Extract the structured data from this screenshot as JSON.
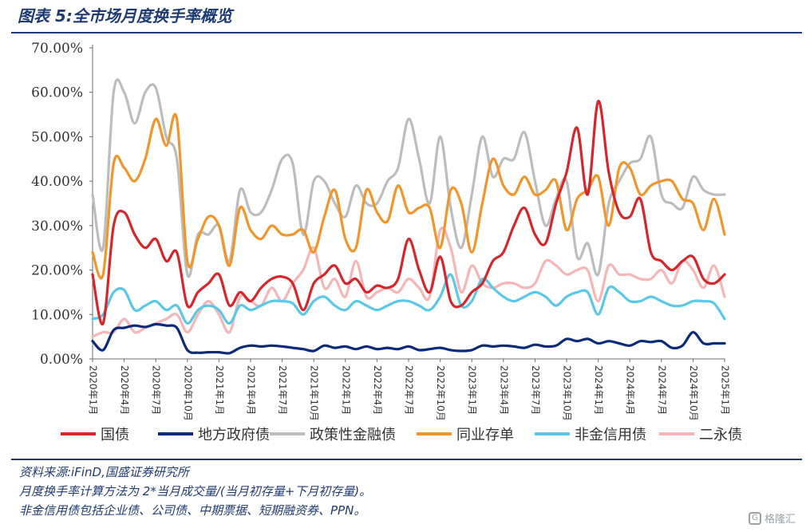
{
  "title": "图表 5:全市场月度换手率概览",
  "notes": {
    "source": "资料来源:iFinD,国盛证券研究所",
    "method": "月度换手率计算方法为 2*当月成交量/(当月初存量+下月初存量)。",
    "scope": "非金信用债包括企业债、公司债、中期票据、短期融资券、PPN。"
  },
  "watermark": "格隆汇",
  "chart_data": {
    "type": "line",
    "title": "",
    "xlabel": "",
    "ylabel": "",
    "ylim": [
      0,
      0.7
    ],
    "yticks": [
      "0.00%",
      "10.00%",
      "20.00%",
      "30.00%",
      "40.00%",
      "50.00%",
      "60.00%",
      "70.00%"
    ],
    "x": [
      "2020-01",
      "2020-02",
      "2020-03",
      "2020-04",
      "2020-05",
      "2020-06",
      "2020-07",
      "2020-08",
      "2020-09",
      "2020-10",
      "2020-11",
      "2020-12",
      "2021-01",
      "2021-02",
      "2021-03",
      "2021-04",
      "2021-05",
      "2021-06",
      "2021-07",
      "2021-08",
      "2021-09",
      "2021-10",
      "2021-11",
      "2021-12",
      "2022-01",
      "2022-02",
      "2022-03",
      "2022-04",
      "2022-05",
      "2022-06",
      "2022-07",
      "2022-08",
      "2022-09",
      "2022-10",
      "2022-11",
      "2022-12",
      "2023-01",
      "2023-02",
      "2023-03",
      "2023-04",
      "2023-05",
      "2023-06",
      "2023-07",
      "2023-08",
      "2023-09",
      "2023-10",
      "2023-11",
      "2023-12",
      "2024-01",
      "2024-02",
      "2024-03",
      "2024-04",
      "2024-05",
      "2024-06",
      "2024-07",
      "2024-08",
      "2024-09",
      "2024-10",
      "2024-11",
      "2024-12",
      "2025-01"
    ],
    "xtick_labels": [
      "2020年1月",
      "2020年4月",
      "2020年7月",
      "2020年10月",
      "2021年1月",
      "2021年4月",
      "2021年7月",
      "2021年10月",
      "2022年1月",
      "2022年4月",
      "2022年7月",
      "2022年10月",
      "2023年1月",
      "2023年4月",
      "2023年7月",
      "2023年10月",
      "2024年1月",
      "2024年4月",
      "2024年7月",
      "2024年10月",
      "2025年1月"
    ],
    "grid": false,
    "legend_position": "bottom",
    "series": [
      {
        "name": "国债",
        "color": "#d7262b",
        "values": [
          0.19,
          0.08,
          0.3,
          0.33,
          0.28,
          0.25,
          0.27,
          0.22,
          0.24,
          0.12,
          0.15,
          0.17,
          0.19,
          0.12,
          0.15,
          0.13,
          0.16,
          0.18,
          0.185,
          0.17,
          0.11,
          0.17,
          0.19,
          0.21,
          0.17,
          0.18,
          0.15,
          0.165,
          0.16,
          0.18,
          0.27,
          0.2,
          0.15,
          0.23,
          0.13,
          0.12,
          0.15,
          0.17,
          0.22,
          0.24,
          0.3,
          0.34,
          0.28,
          0.26,
          0.35,
          0.42,
          0.52,
          0.37,
          0.58,
          0.42,
          0.33,
          0.32,
          0.36,
          0.24,
          0.22,
          0.2,
          0.22,
          0.23,
          0.18,
          0.17,
          0.19
        ]
      },
      {
        "name": "地方政府债",
        "color": "#0b2a7a",
        "values": [
          0.04,
          0.02,
          0.065,
          0.07,
          0.075,
          0.072,
          0.078,
          0.075,
          0.07,
          0.02,
          0.014,
          0.015,
          0.015,
          0.013,
          0.025,
          0.03,
          0.028,
          0.03,
          0.028,
          0.025,
          0.022,
          0.018,
          0.03,
          0.025,
          0.028,
          0.022,
          0.028,
          0.022,
          0.025,
          0.022,
          0.028,
          0.02,
          0.022,
          0.025,
          0.02,
          0.018,
          0.02,
          0.03,
          0.028,
          0.03,
          0.028,
          0.025,
          0.032,
          0.028,
          0.03,
          0.045,
          0.04,
          0.045,
          0.035,
          0.04,
          0.035,
          0.03,
          0.04,
          0.038,
          0.04,
          0.025,
          0.03,
          0.06,
          0.035,
          0.035,
          0.035
        ]
      },
      {
        "name": "政策性金融债",
        "color": "#bdbdbd",
        "values": [
          0.37,
          0.25,
          0.6,
          0.6,
          0.53,
          0.6,
          0.61,
          0.5,
          0.45,
          0.19,
          0.28,
          0.28,
          0.3,
          0.22,
          0.38,
          0.33,
          0.33,
          0.38,
          0.45,
          0.44,
          0.28,
          0.4,
          0.4,
          0.35,
          0.32,
          0.39,
          0.35,
          0.35,
          0.4,
          0.43,
          0.54,
          0.45,
          0.35,
          0.5,
          0.34,
          0.25,
          0.37,
          0.5,
          0.41,
          0.45,
          0.45,
          0.51,
          0.4,
          0.3,
          0.36,
          0.4,
          0.23,
          0.26,
          0.19,
          0.35,
          0.4,
          0.44,
          0.45,
          0.5,
          0.37,
          0.35,
          0.34,
          0.41,
          0.38,
          0.37,
          0.37
        ]
      },
      {
        "name": "同业存单",
        "color": "#f0962a",
        "values": [
          0.24,
          0.19,
          0.44,
          0.43,
          0.4,
          0.45,
          0.54,
          0.48,
          0.54,
          0.22,
          0.27,
          0.32,
          0.3,
          0.21,
          0.34,
          0.29,
          0.27,
          0.3,
          0.28,
          0.28,
          0.29,
          0.24,
          0.32,
          0.38,
          0.27,
          0.25,
          0.38,
          0.33,
          0.31,
          0.39,
          0.33,
          0.34,
          0.34,
          0.25,
          0.38,
          0.35,
          0.24,
          0.35,
          0.45,
          0.39,
          0.37,
          0.41,
          0.37,
          0.38,
          0.4,
          0.29,
          0.36,
          0.38,
          0.41,
          0.3,
          0.43,
          0.43,
          0.37,
          0.39,
          0.4,
          0.4,
          0.36,
          0.35,
          0.29,
          0.36,
          0.28
        ]
      },
      {
        "name": "非金信用债",
        "color": "#5bc8e8",
        "values": [
          0.09,
          0.1,
          0.15,
          0.155,
          0.11,
          0.12,
          0.13,
          0.11,
          0.12,
          0.08,
          0.11,
          0.12,
          0.11,
          0.08,
          0.12,
          0.11,
          0.12,
          0.13,
          0.13,
          0.125,
          0.1,
          0.13,
          0.14,
          0.12,
          0.11,
          0.13,
          0.12,
          0.11,
          0.12,
          0.13,
          0.13,
          0.12,
          0.11,
          0.14,
          0.19,
          0.12,
          0.13,
          0.18,
          0.16,
          0.14,
          0.13,
          0.14,
          0.15,
          0.14,
          0.12,
          0.14,
          0.15,
          0.15,
          0.1,
          0.16,
          0.15,
          0.13,
          0.13,
          0.14,
          0.13,
          0.12,
          0.12,
          0.13,
          0.13,
          0.125,
          0.09
        ]
      },
      {
        "name": "二永债",
        "color": "#f4b6b6",
        "values": [
          0.05,
          0.06,
          0.06,
          0.09,
          0.06,
          0.07,
          0.08,
          0.09,
          0.1,
          0.06,
          0.1,
          0.13,
          0.1,
          0.06,
          0.14,
          0.13,
          0.12,
          0.16,
          0.13,
          0.17,
          0.2,
          0.25,
          0.16,
          0.18,
          0.14,
          0.22,
          0.14,
          0.15,
          0.16,
          0.15,
          0.18,
          0.16,
          0.14,
          0.29,
          0.25,
          0.15,
          0.21,
          0.17,
          0.16,
          0.17,
          0.17,
          0.16,
          0.17,
          0.22,
          0.21,
          0.19,
          0.2,
          0.2,
          0.13,
          0.21,
          0.19,
          0.19,
          0.18,
          0.18,
          0.2,
          0.17,
          0.22,
          0.2,
          0.16,
          0.21,
          0.14
        ]
      }
    ]
  }
}
